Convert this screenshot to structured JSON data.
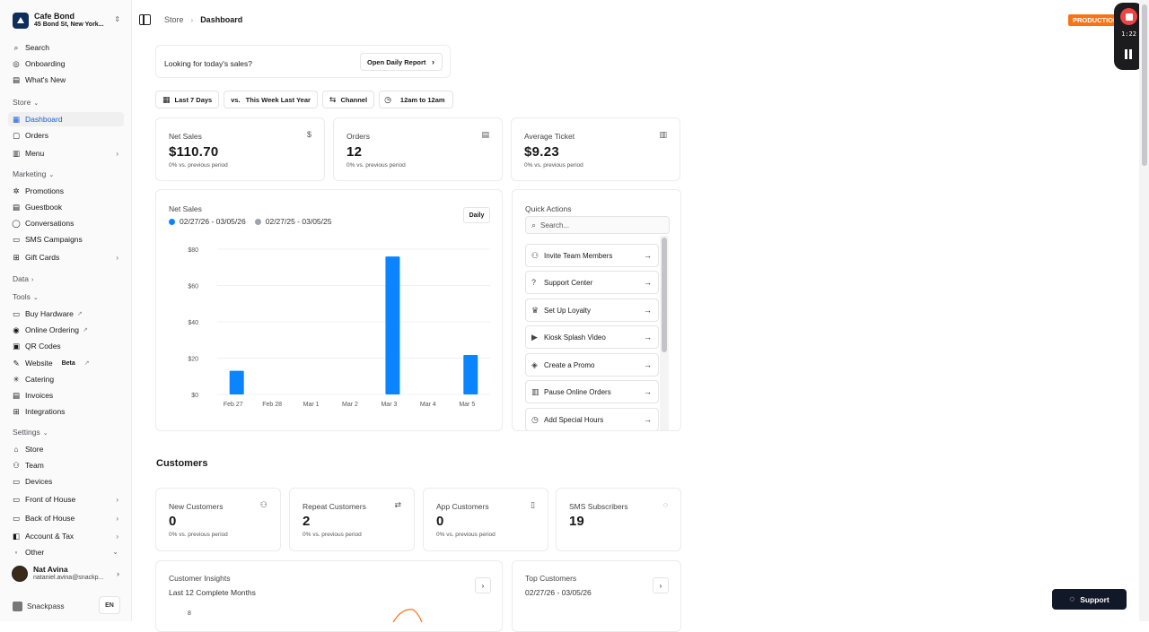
{
  "brand": {
    "name": "Cafe Bond",
    "address": "45 Bond St, New York..."
  },
  "sidebar": {
    "top": [
      {
        "label": "Search",
        "icon": "⌕"
      },
      {
        "label": "Onboarding",
        "icon": "◎"
      },
      {
        "label": "What's New",
        "icon": "▤"
      }
    ],
    "store_section": "Store",
    "store": [
      {
        "label": "Dashboard",
        "icon": "▦"
      },
      {
        "label": "Orders",
        "icon": "▢"
      },
      {
        "label": "Menu",
        "icon": "▥"
      }
    ],
    "marketing_section": "Marketing",
    "marketing": [
      {
        "label": "Promotions",
        "icon": "✲"
      },
      {
        "label": "Guestbook",
        "icon": "▤"
      },
      {
        "label": "Conversations",
        "icon": "◯"
      },
      {
        "label": "SMS Campaigns",
        "icon": "▭"
      },
      {
        "label": "Gift Cards",
        "icon": "⊞"
      }
    ],
    "data_section": "Data",
    "tools_section": "Tools",
    "tools": [
      {
        "label": "Buy Hardware",
        "icon": "▭"
      },
      {
        "label": "Online Ordering",
        "icon": "◉"
      },
      {
        "label": "QR Codes",
        "icon": "▣"
      },
      {
        "label": "Website",
        "icon": "✎",
        "badge": "Beta"
      },
      {
        "label": "Catering",
        "icon": "✳"
      },
      {
        "label": "Invoices",
        "icon": "▤"
      },
      {
        "label": "Integrations",
        "icon": "⊞"
      }
    ],
    "settings_section": "Settings",
    "settings": [
      {
        "label": "Store",
        "icon": "⌂"
      },
      {
        "label": "Team",
        "icon": "⚇"
      },
      {
        "label": "Devices",
        "icon": "▭"
      },
      {
        "label": "Front of House",
        "icon": "▭"
      },
      {
        "label": "Back of House",
        "icon": "▭"
      },
      {
        "label": "Account & Tax",
        "icon": "◧"
      },
      {
        "label": "Other",
        "icon": "◦"
      }
    ],
    "user": {
      "name": "Nat Avina",
      "email": "nataniel.avina@snackp..."
    },
    "footer": {
      "brand": "Snackpass",
      "lang": "EN"
    }
  },
  "topbar": {
    "crumb_root": "Store",
    "crumb_current": "Dashboard",
    "env_badge": "PRODUCTION",
    "rec_time": "1:22"
  },
  "today": {
    "question": "Looking for today's sales?",
    "button": "Open Daily Report"
  },
  "filters": {
    "range": "Last 7 Days",
    "vs_prefix": "vs.",
    "compare": "This Week Last Year",
    "channel": "Channel",
    "hours": "12am to 12am"
  },
  "stats": [
    {
      "title": "Net Sales",
      "value": "$110.70",
      "sub": "0% vs. previous period",
      "icon": "$"
    },
    {
      "title": "Orders",
      "value": "12",
      "sub": "0% vs. previous period",
      "icon": "▤"
    },
    {
      "title": "Average Ticket",
      "value": "$9.23",
      "sub": "0% vs. previous period",
      "icon": "▥"
    }
  ],
  "net_sales_chart": {
    "title": "Net Sales",
    "period_button": "Daily",
    "legend": [
      {
        "label": "02/27/26 - 03/05/26",
        "color": "#0a84ff"
      },
      {
        "label": "02/27/25 - 03/05/25",
        "color": "#9ca3af"
      }
    ]
  },
  "chart_data": {
    "type": "bar",
    "title": "Net Sales",
    "categories": [
      "Feb 27",
      "Feb 28",
      "Mar 1",
      "Mar 2",
      "Mar 3",
      "Mar 4",
      "Mar 5"
    ],
    "series": [
      {
        "name": "02/27/26 - 03/05/26",
        "values": [
          13,
          0,
          0,
          0,
          76,
          0,
          21.7
        ]
      },
      {
        "name": "02/27/25 - 03/05/25",
        "values": [
          0,
          0,
          0,
          0,
          0,
          0,
          0
        ]
      }
    ],
    "yticks": [
      "$0",
      "$20",
      "$40",
      "$60",
      "$80"
    ],
    "ylim": [
      0,
      80
    ],
    "xlabel": "",
    "ylabel": "",
    "grid": true
  },
  "quick_actions": {
    "title": "Quick Actions",
    "search_placeholder": "Search...",
    "items": [
      {
        "label": "Invite Team Members",
        "icon": "⚇"
      },
      {
        "label": "Support Center",
        "icon": "?"
      },
      {
        "label": "Set Up Loyalty",
        "icon": "♛"
      },
      {
        "label": "Kiosk Splash Video",
        "icon": "▶"
      },
      {
        "label": "Create a Promo",
        "icon": "◈"
      },
      {
        "label": "Pause Online Orders",
        "icon": "▥"
      },
      {
        "label": "Add Special Hours",
        "icon": "◷"
      }
    ]
  },
  "customers": {
    "heading": "Customers",
    "stats": [
      {
        "title": "New Customers",
        "value": "0",
        "sub": "0% vs. previous period",
        "icon": "⚇"
      },
      {
        "title": "Repeat Customers",
        "value": "2",
        "sub": "0% vs. previous period",
        "icon": "⇄"
      },
      {
        "title": "App Customers",
        "value": "0",
        "sub": "0% vs. previous period",
        "icon": "▯"
      },
      {
        "title": "SMS Subscribers",
        "value": "19",
        "sub": "",
        "icon": "◌"
      }
    ],
    "insights": {
      "title": "Customer Insights",
      "sub": "Last 12 Complete Months",
      "first_tick": "8"
    },
    "top": {
      "title": "Top Customers",
      "sub": "02/27/26 - 03/05/26"
    }
  },
  "support_button": "Support"
}
